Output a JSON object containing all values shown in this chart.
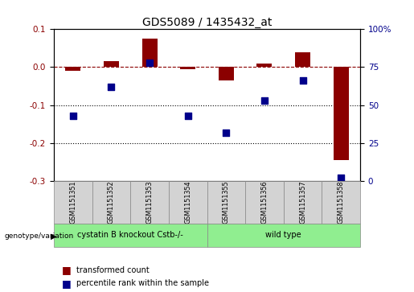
{
  "title": "GDS5089 / 1435432_at",
  "samples": [
    "GSM1151351",
    "GSM1151352",
    "GSM1151353",
    "GSM1151354",
    "GSM1151355",
    "GSM1151356",
    "GSM1151357",
    "GSM1151358"
  ],
  "transformed_count": [
    -0.01,
    0.015,
    0.075,
    -0.005,
    -0.035,
    0.01,
    0.04,
    -0.245
  ],
  "percentile_rank": [
    43,
    62,
    78,
    43,
    32,
    53,
    66,
    2
  ],
  "bar_color": "#8B0000",
  "dot_color": "#00008B",
  "groups": [
    {
      "label": "cystatin B knockout Cstb-/-",
      "span": [
        0,
        3
      ],
      "color": "#90EE90"
    },
    {
      "label": "wild type",
      "span": [
        4,
        7
      ],
      "color": "#90EE90"
    }
  ],
  "ylim_left": [
    -0.3,
    0.1
  ],
  "ylim_right": [
    0,
    100
  ],
  "yticks_left": [
    -0.3,
    -0.2,
    -0.1,
    0.0,
    0.1
  ],
  "yticks_right": [
    0,
    25,
    50,
    75,
    100
  ],
  "ytick_labels_right": [
    "0",
    "25",
    "50",
    "75",
    "100%"
  ],
  "hline_y": 0.0,
  "dotted_lines": [
    -0.1,
    -0.2
  ],
  "legend_items": [
    {
      "color": "#8B0000",
      "label": "transformed count"
    },
    {
      "color": "#00008B",
      "label": "percentile rank within the sample"
    }
  ],
  "bar_width": 0.4,
  "dot_size": 28,
  "box_facecolor": "#D3D3D3",
  "group_facecolor": "#90EE90",
  "genotype_label": "genotype/variation"
}
